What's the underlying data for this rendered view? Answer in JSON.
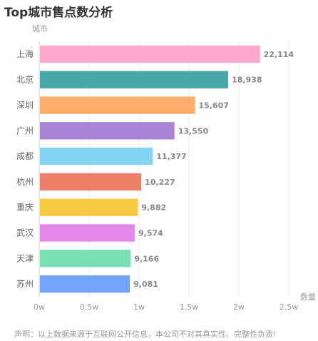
{
  "title": "Top城市售点数分析",
  "footnote": "声明：以上数据来源于互联网公开信息，本公司不对其真实性、完整性负责!",
  "chart_data": {
    "type": "bar",
    "orientation": "horizontal",
    "ylabel": "城市",
    "xlabel": "数量",
    "categories": [
      "上海",
      "北京",
      "深圳",
      "广州",
      "成都",
      "杭州",
      "重庆",
      "武汉",
      "天津",
      "苏州"
    ],
    "values": [
      22114,
      18938,
      15607,
      13550,
      11377,
      10227,
      9882,
      9574,
      9166,
      9081
    ],
    "value_labels": [
      "22,114",
      "18,938",
      "15,607",
      "13,550",
      "11,377",
      "10,227",
      "9,882",
      "9,574",
      "9,166",
      "9,081"
    ],
    "colors": [
      "#ffa8cf",
      "#47a8a7",
      "#ffad68",
      "#a784d5",
      "#84d3f2",
      "#ee7f69",
      "#f7c941",
      "#e489ec",
      "#79e0b6",
      "#74a4f9"
    ],
    "xlim": [
      0,
      25000
    ],
    "xticks": [
      0,
      5000,
      10000,
      15000,
      20000,
      25000
    ],
    "xtick_labels": [
      "0w",
      "0.5w",
      "1w",
      "1.5w",
      "2w",
      "2.5w"
    ],
    "grid": true
  }
}
